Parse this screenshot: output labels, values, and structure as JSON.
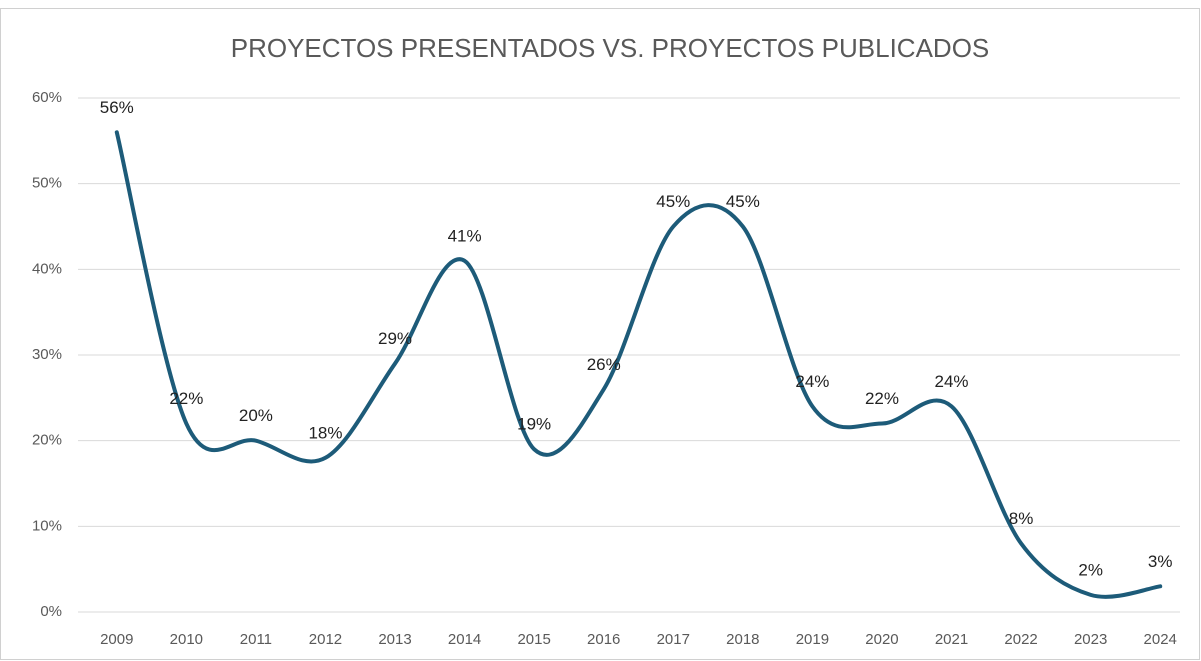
{
  "chart_data": {
    "type": "line",
    "title": "PROYECTOS PRESENTADOS VS. PROYECTOS PUBLICADOS",
    "categories": [
      "2009",
      "2010",
      "2011",
      "2012",
      "2013",
      "2014",
      "2015",
      "2016",
      "2017",
      "2018",
      "2019",
      "2020",
      "2021",
      "2022",
      "2023",
      "2024"
    ],
    "series": [
      {
        "name": "Proyectos publicados",
        "color": "#1d5b79",
        "values": [
          56,
          22,
          20,
          18,
          29,
          41,
          19,
          26,
          45,
          45,
          24,
          22,
          24,
          8,
          2,
          3
        ],
        "value_labels": [
          "56%",
          "22%",
          "20%",
          "18%",
          "29%",
          "41%",
          "19%",
          "26%",
          "45%",
          "45%",
          "24%",
          "22%",
          "24%",
          "8%",
          "2%",
          "3%"
        ]
      }
    ],
    "ylim": [
      0,
      60
    ],
    "yticks": [
      {
        "value": 0,
        "label": "0%"
      },
      {
        "value": 10,
        "label": "10%"
      },
      {
        "value": 20,
        "label": "20%"
      },
      {
        "value": 30,
        "label": "30%"
      },
      {
        "value": 40,
        "label": "40%"
      },
      {
        "value": 50,
        "label": "50%"
      },
      {
        "value": 60,
        "label": "60%"
      }
    ],
    "grid": true,
    "smooth": true
  }
}
